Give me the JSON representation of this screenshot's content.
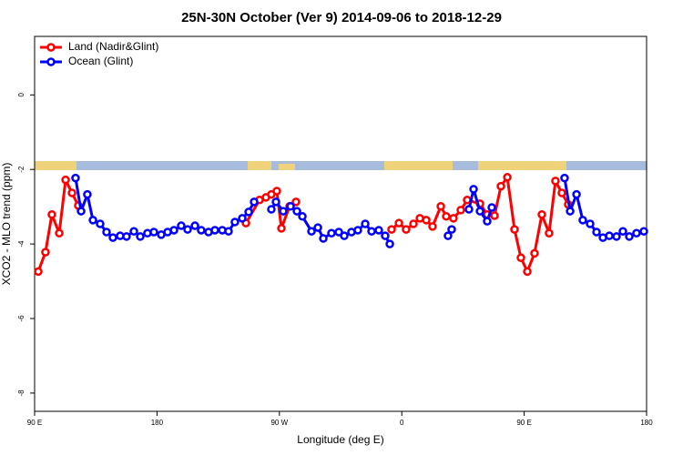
{
  "chart_data": {
    "type": "line",
    "title": "25N-30N October (Ver 9)   2014-09-06 to 2018-12-29",
    "x_label": "Longitude (deg E)",
    "y_label": "XCO2 - MLO trend (ppm)",
    "xlim": [
      90,
      540
    ],
    "ylim": [
      -8.49,
      1.57
    ],
    "xticks": [
      {
        "value": 90,
        "label": "90 E"
      },
      180,
      {
        "value": 270,
        "label": "90 W"
      },
      {
        "value": 360,
        "label": "0"
      },
      {
        "value": 450,
        "label": "90 E"
      },
      {
        "value": 540,
        "label": "180"
      }
    ],
    "yticks": [
      0,
      -2,
      -4,
      -6,
      -8
    ],
    "legend": "top-left",
    "series": [
      {
        "name": "Land (Nadir&Glint)",
        "color": "#ff0000",
        "x": [
          92.7,
          98,
          102.7,
          108.1,
          112.8,
          117.5,
          122.1,
          null,
          245.4,
          255.4,
          260.1,
          264.1,
          268.1,
          271.5,
          277.5,
          282.2,
          null,
          352.5,
          357.9,
          363.2,
          368.6,
          373.3,
          378.0,
          382.6,
          388.7,
          392.7,
          398.0,
          403.4,
          408.1,
          417.5,
          422.8,
          428.2,
          432.9,
          437.6,
          442.9,
          447.6,
          452.3,
          457.6,
          463.0,
          468.3,
          473.0,
          477.7,
          482.4
        ],
        "values": [
          -4.74,
          -4.22,
          -3.21,
          -3.71,
          -2.28,
          -2.63,
          -2.97,
          null,
          -3.44,
          -2.82,
          -2.75,
          -2.67,
          -2.58,
          -3.58,
          -2.99,
          -2.87,
          null,
          -3.61,
          -3.44,
          -3.61,
          -3.46,
          -3.31,
          -3.36,
          -3.53,
          -2.99,
          -3.26,
          -3.31,
          -3.09,
          -2.82,
          -2.92,
          -3.21,
          -3.24,
          -2.45,
          -2.21,
          -3.61,
          -4.37,
          -4.74,
          -4.25,
          -3.21,
          -3.71,
          -2.31,
          -2.63,
          -2.94
        ]
      },
      {
        "name": "Ocean (Glint)",
        "color": "#0000ff",
        "x": [
          120.1,
          124.2,
          128.8,
          132.9,
          138.2,
          142.9,
          147.6,
          152.9,
          157.6,
          163.0,
          167.7,
          173.0,
          177.7,
          183.1,
          187.8,
          192.5,
          197.8,
          202.5,
          207.9,
          212.5,
          217.9,
          222.6,
          228.0,
          232.6,
          237.3,
          242.7,
          247.4,
          251.4,
          null,
          264.1,
          267.5,
          272.8,
          278.2,
          282.9,
          286.9,
          293.6,
          298.3,
          302.3,
          308.3,
          313.7,
          317.7,
          323.0,
          327.7,
          333.1,
          337.8,
          343.1,
          347.8,
          351.2,
          null,
          394.0,
          396.7,
          null,
          409.4,
          412.8,
          417.5,
          422.8,
          426.2,
          null,
          479.7,
          483.8,
          488.5,
          493.1,
          498.5,
          503.2,
          507.9,
          512.6,
          517.9,
          522.6,
          527.3,
          532.6,
          538.0
        ],
        "values": [
          -2.23,
          -3.12,
          -2.67,
          -3.36,
          -3.46,
          -3.68,
          -3.83,
          -3.78,
          -3.8,
          -3.66,
          -3.8,
          -3.71,
          -3.68,
          -3.75,
          -3.68,
          -3.63,
          -3.51,
          -3.61,
          -3.51,
          -3.63,
          -3.68,
          -3.63,
          -3.63,
          -3.66,
          -3.41,
          -3.31,
          -3.14,
          -2.87,
          null,
          -3.07,
          -2.87,
          -3.12,
          -2.99,
          -3.12,
          -3.26,
          -3.66,
          -3.56,
          -3.85,
          -3.71,
          -3.68,
          -3.78,
          -3.68,
          -3.63,
          -3.46,
          -3.66,
          -3.63,
          -3.78,
          -4.0,
          null,
          -3.78,
          -3.61,
          null,
          -3.07,
          -2.53,
          -3.12,
          -3.39,
          -3.02,
          null,
          -2.23,
          -3.12,
          -2.67,
          -3.36,
          -3.46,
          -3.68,
          -3.83,
          -3.78,
          -3.8,
          -3.66,
          -3.8,
          -3.71,
          -3.66
        ]
      }
    ]
  }
}
